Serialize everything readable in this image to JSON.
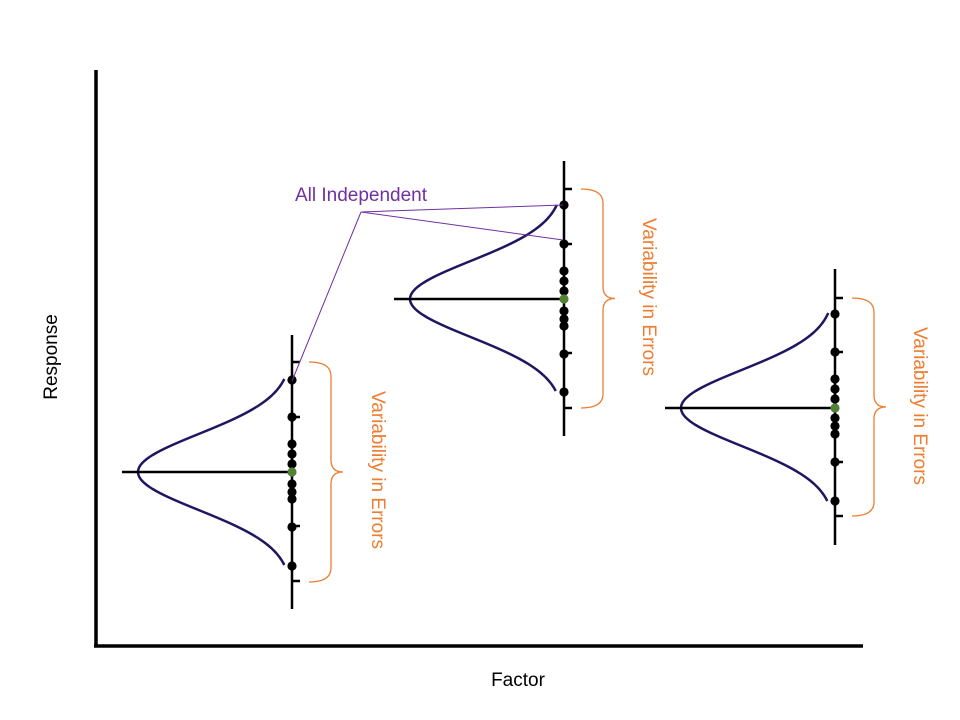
{
  "axes": {
    "x_label": "Factor",
    "y_label": "Response"
  },
  "annotation": {
    "label": "All Independent"
  },
  "groups": [
    {
      "name": "left-group",
      "brace_label": "Variability in Errors"
    },
    {
      "name": "middle-group",
      "brace_label": "Variability in Errors"
    },
    {
      "name": "right-group",
      "brace_label": "Variability in Errors"
    }
  ],
  "colors": {
    "axis": "#000000",
    "curve": "#1f1660",
    "mean_point": "#548235",
    "observation_point": "#000000",
    "brace": "#ed7d31",
    "brace_text": "#ed7d31",
    "annotation": "#7030a0"
  }
}
